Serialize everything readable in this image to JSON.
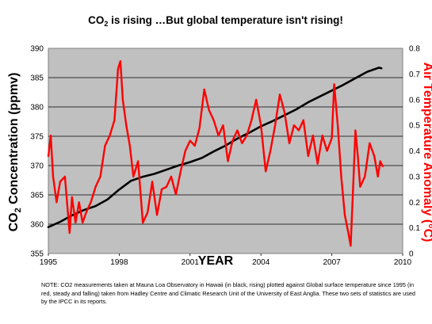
{
  "chart_data": {
    "type": "line",
    "title": "CO₂ is rising …But global temperature isn't rising!",
    "title_parts": {
      "pre": "CO",
      "sub": "2",
      "post": " is rising …But global temperature isn't rising!"
    },
    "xlabel": "YEAR",
    "ylabel_left": "CO2 Concentration (ppmv)",
    "ylabel_left_parts": {
      "pre": "CO",
      "sub": "2",
      "post": " Concentration (ppmv)"
    },
    "ylabel_right": "Air Temperature Anomaly (°C)",
    "xlim": [
      1995,
      2010
    ],
    "ylim_left": [
      355,
      390
    ],
    "ylim_right": [
      0,
      0.8
    ],
    "x_ticks": [
      "1995",
      "1998",
      "2001",
      "2004",
      "2007",
      "2010"
    ],
    "y_left_ticks": [
      "355",
      "360",
      "365",
      "370",
      "375",
      "380",
      "385",
      "390"
    ],
    "y_right_ticks": [
      "0",
      "0.1",
      "0.2",
      "0.3",
      "0.4",
      "0.5",
      "0.6",
      "0.7",
      "0.8"
    ],
    "grid": true,
    "plot_background": "#c0c0c0",
    "series": [
      {
        "axis": "left",
        "color": "#000000",
        "x": [
          1995.0,
          1995.5,
          1996.0,
          1996.5,
          1997.0,
          1997.5,
          1998.0,
          1998.5,
          1999.0,
          1999.5,
          2000.0,
          2000.5,
          2001.0,
          2001.5,
          2002.0,
          2002.5,
          2003.0,
          2003.5,
          2004.0,
          2004.5,
          2005.0,
          2005.5,
          2006.0,
          2006.5,
          2007.0,
          2007.5,
          2008.0,
          2008.5,
          2009.0,
          2009.1
        ],
        "y": [
          359.5,
          360.4,
          361.5,
          362.4,
          363.1,
          364.2,
          365.9,
          367.4,
          368.1,
          368.6,
          369.3,
          370.0,
          370.6,
          371.3,
          372.4,
          373.4,
          374.6,
          375.6,
          376.7,
          377.6,
          378.6,
          379.6,
          380.8,
          381.8,
          382.8,
          383.8,
          384.9,
          386.0,
          386.7,
          386.6
        ]
      },
      {
        "axis": "right",
        "color": "#ff0000",
        "x": [
          1995.0,
          1995.1,
          1995.2,
          1995.35,
          1995.5,
          1995.7,
          1995.9,
          1996.0,
          1996.15,
          1996.3,
          1996.45,
          1996.6,
          1996.8,
          1997.0,
          1997.2,
          1997.4,
          1997.6,
          1997.8,
          1997.95,
          1998.05,
          1998.15,
          1998.3,
          1998.45,
          1998.6,
          1998.8,
          1999.0,
          1999.2,
          1999.4,
          1999.6,
          1999.8,
          2000.0,
          2000.2,
          2000.4,
          2000.6,
          2000.8,
          2001.0,
          2001.2,
          2001.4,
          2001.6,
          2001.8,
          2002.0,
          2002.2,
          2002.4,
          2002.6,
          2002.8,
          2003.0,
          2003.2,
          2003.4,
          2003.6,
          2003.8,
          2004.0,
          2004.2,
          2004.4,
          2004.6,
          2004.8,
          2005.0,
          2005.2,
          2005.4,
          2005.6,
          2005.8,
          2006.0,
          2006.2,
          2006.4,
          2006.6,
          2006.8,
          2007.0,
          2007.1,
          2007.25,
          2007.4,
          2007.55,
          2007.7,
          2007.8,
          2007.9,
          2008.0,
          2008.1,
          2008.2,
          2008.4,
          2008.6,
          2008.8,
          2008.95,
          2009.05,
          2009.15
        ],
        "y": [
          0.38,
          0.46,
          0.3,
          0.2,
          0.28,
          0.3,
          0.08,
          0.22,
          0.12,
          0.2,
          0.12,
          0.16,
          0.2,
          0.26,
          0.3,
          0.42,
          0.46,
          0.52,
          0.72,
          0.75,
          0.6,
          0.5,
          0.42,
          0.3,
          0.36,
          0.12,
          0.16,
          0.28,
          0.15,
          0.25,
          0.26,
          0.3,
          0.23,
          0.32,
          0.4,
          0.44,
          0.42,
          0.49,
          0.64,
          0.56,
          0.52,
          0.46,
          0.5,
          0.36,
          0.44,
          0.48,
          0.43,
          0.46,
          0.52,
          0.6,
          0.5,
          0.32,
          0.4,
          0.5,
          0.62,
          0.55,
          0.43,
          0.5,
          0.48,
          0.52,
          0.38,
          0.46,
          0.35,
          0.46,
          0.4,
          0.45,
          0.66,
          0.5,
          0.3,
          0.15,
          0.08,
          0.03,
          0.25,
          0.48,
          0.38,
          0.26,
          0.3,
          0.43,
          0.38,
          0.3,
          0.36,
          0.34
        ]
      }
    ],
    "note": "NOTE: CO2 measurements taken at Mauna Loa Observatory in Hawaii (in black, rising) plotted against Global surface temperature since 1995 (in red, steady  and falling) taken from Hadley Centre and Climatic Research Unit of the University of East Anglia. These two sets of statistics are used by the IPCC in its reports."
  }
}
